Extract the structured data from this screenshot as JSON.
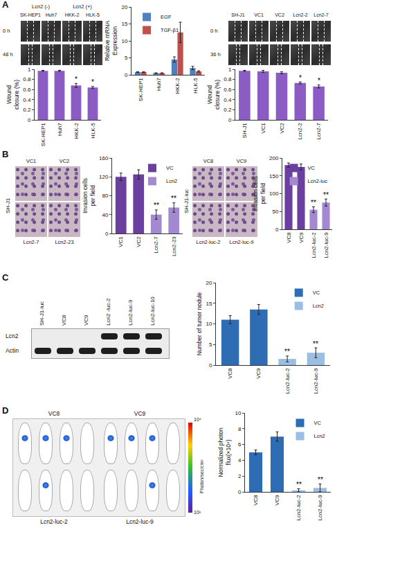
{
  "panels": [
    "A",
    "B",
    "C",
    "D"
  ],
  "images": {
    "A_left": {
      "group_labels": [
        "Lcn2 (-)",
        "Lcn2 (+)"
      ],
      "columns": [
        "SK-HEP1",
        "Huh7",
        "HKK-2",
        "HLK-5"
      ],
      "rows": [
        "0 h",
        "48 h"
      ]
    },
    "A_right": {
      "columns": [
        "SH-J1",
        "VC1",
        "VC2",
        "Lcn2-2",
        "Lcn2-7"
      ],
      "rows": [
        "0 h",
        "36 h"
      ]
    },
    "B_left": {
      "side_label": "SH-J1",
      "top": [
        "VC1",
        "VC2"
      ],
      "bottom": [
        "Lcn2-7",
        "Lcn2-23"
      ]
    },
    "B_right": {
      "side_label": "SH-J1-luc",
      "top": [
        "VC8",
        "VC9"
      ],
      "bottom": [
        "Lcn2-luc-2",
        "Lcn2-luc-9"
      ]
    },
    "C_blot": {
      "lanes": [
        "SH-J1-luc",
        "VC8",
        "VC9",
        "Lcn2 -luc-2",
        "Lcn2-luc-9",
        "Lcn2-luc-10"
      ],
      "rows": [
        {
          "label": "Lcn2",
          "bands": [
            false,
            false,
            false,
            true,
            true,
            true
          ]
        },
        {
          "label": "Actin",
          "bands": [
            true,
            true,
            true,
            true,
            true,
            true
          ]
        }
      ]
    },
    "D_imaging": {
      "top": [
        "VC8",
        "VC9"
      ],
      "bottom": [
        "Lcn2-luc-2",
        "Lcn2-luc-9"
      ],
      "scale_top": "10⁴",
      "scale_bottom": "10³",
      "scale_unit": "Photon/sec/cm²"
    }
  },
  "chart_data": [
    {
      "type": "bar",
      "y_label": "Wound closure (%)",
      "categories": [
        "SK-HEP1",
        "Huh7",
        "HKK-2",
        "HLK-5"
      ],
      "values": [
        0.97,
        0.97,
        0.68,
        0.64
      ],
      "errors": [
        0.01,
        0.01,
        0.04,
        0.02
      ],
      "color": "#8a5cc4",
      "ylim": [
        0,
        1
      ],
      "yticks": [
        0,
        0.2,
        0.4,
        0.6,
        0.8,
        1
      ],
      "annotations": [
        {
          "category": "HKK-2",
          "text": "*"
        },
        {
          "category": "HLK-5",
          "text": "*"
        }
      ]
    },
    {
      "type": "bar",
      "y_label": "Relative mRNA Expression",
      "categories": [
        "SK-HEP1",
        "Huh7",
        "HKK-2",
        "HLK-5"
      ],
      "series": [
        {
          "name": "EGF",
          "color": "#4f81bd",
          "values": [
            0.8,
            0.5,
            4.5,
            2.0
          ],
          "errors": [
            0.1,
            0.1,
            0.8,
            0.5
          ]
        },
        {
          "name": "TGF-β1",
          "color": "#c0504d",
          "values": [
            0.8,
            0.5,
            12.5,
            1.0
          ],
          "errors": [
            0.1,
            0.1,
            3,
            0.2
          ]
        }
      ],
      "ylim": [
        0,
        20
      ],
      "yticks": [
        0,
        5,
        10,
        15,
        20
      ],
      "legend": "top left"
    },
    {
      "type": "bar",
      "y_label": "Wound closure (%)",
      "categories": [
        "SH-J1",
        "VC1",
        "VC2",
        "Lcn2-2",
        "Lcn2-7"
      ],
      "values": [
        0.97,
        0.96,
        0.93,
        0.73,
        0.66
      ],
      "errors": [
        0.01,
        0.02,
        0.02,
        0.02,
        0.03
      ],
      "color": "#8a5cc4",
      "ylim": [
        0,
        1
      ],
      "yticks": [
        0,
        0.2,
        0.4,
        0.6,
        0.8,
        1
      ],
      "annotations": [
        {
          "category": "Lcn2-2",
          "text": "*"
        },
        {
          "category": "Lcn2-7",
          "text": "*"
        }
      ]
    },
    {
      "type": "bar",
      "y_label": "Invasion cells per field",
      "categories": [
        "VC1",
        "VC2",
        "Lcn2-7",
        "Lcn2-23"
      ],
      "series": [
        {
          "name": "VC",
          "color": "#6b3fa0",
          "values": [
            120,
            125,
            null,
            null
          ],
          "errors": [
            8,
            10,
            null,
            null
          ]
        },
        {
          "name": "Lcn2",
          "color": "#a38ad0",
          "values": [
            null,
            null,
            40,
            55
          ],
          "errors": [
            null,
            null,
            10,
            10
          ]
        }
      ],
      "ylim": [
        0,
        160
      ],
      "yticks": [
        0,
        40,
        80,
        120,
        160
      ],
      "legend": "top right",
      "annotations": [
        {
          "category": "Lcn2-7",
          "text": "**"
        },
        {
          "category": "Lcn2-23",
          "text": "**"
        }
      ]
    },
    {
      "type": "bar",
      "y_label": "Invasion cells per field",
      "categories": [
        "VC8",
        "VC9",
        "Lcn2-luc-2",
        "Lcn2-luc-9"
      ],
      "series": [
        {
          "name": "VC",
          "color": "#6b3fa0",
          "values": [
            180,
            175,
            null,
            null
          ],
          "errors": [
            6,
            8,
            null,
            null
          ]
        },
        {
          "name": "Lcn2-luc",
          "color": "#a38ad0",
          "values": [
            null,
            null,
            55,
            75
          ],
          "errors": [
            null,
            null,
            8,
            10
          ]
        }
      ],
      "ylim": [
        0,
        200
      ],
      "yticks": [
        0,
        50,
        100,
        150,
        200
      ],
      "legend": "top right",
      "annotations": [
        {
          "category": "Lcn2-luc-2",
          "text": "**"
        },
        {
          "category": "Lcn2-luc-9",
          "text": "**"
        }
      ]
    },
    {
      "type": "bar",
      "y_label": "Number of tumor nodule",
      "categories": [
        "VC8",
        "VC9",
        "Lcn2-luc-2",
        "Lcn2-luc-9"
      ],
      "series": [
        {
          "name": "VC",
          "color": "#2e6db4",
          "values": [
            11,
            13.5,
            null,
            null
          ],
          "errors": [
            1,
            1.2,
            null,
            null
          ]
        },
        {
          "name": "Lcn2",
          "color": "#9bbfe3",
          "values": [
            null,
            null,
            1.5,
            3
          ],
          "errors": [
            null,
            null,
            0.7,
            1.2
          ]
        }
      ],
      "ylim": [
        0,
        20
      ],
      "yticks": [
        0,
        5,
        10,
        15,
        20
      ],
      "legend": "top right",
      "annotations": [
        {
          "category": "Lcn2-luc-2",
          "text": "**"
        },
        {
          "category": "Lcn2-luc-9",
          "text": "**"
        }
      ]
    },
    {
      "type": "bar",
      "y_label": "Normalized photon flux(×10⁴)",
      "categories": [
        "VC8",
        "VC9",
        "Lcn2-luc-2",
        "Lcn2-luc-9"
      ],
      "series": [
        {
          "name": "VC",
          "color": "#2e6db4",
          "values": [
            5,
            7,
            null,
            null
          ],
          "errors": [
            0.3,
            0.6,
            null,
            null
          ]
        },
        {
          "name": "Lcn2",
          "color": "#9bbfe3",
          "values": [
            null,
            null,
            0.2,
            0.5
          ],
          "errors": [
            null,
            null,
            0.2,
            0.5
          ]
        }
      ],
      "ylim": [
        0,
        10
      ],
      "yticks": [
        0,
        2,
        4,
        6,
        8,
        10
      ],
      "legend": "top right",
      "annotations": [
        {
          "category": "Lcn2-luc-2",
          "text": "**"
        },
        {
          "category": "Lcn2-luc-9",
          "text": "**"
        }
      ]
    }
  ]
}
